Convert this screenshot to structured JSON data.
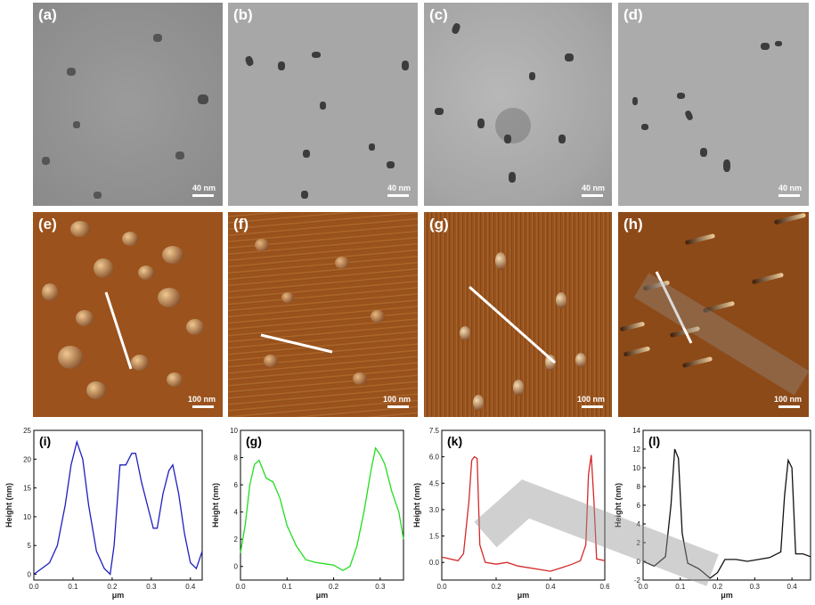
{
  "tem_panels": [
    {
      "label": "(a)",
      "scale": "40 nm"
    },
    {
      "label": "(b)",
      "scale": "40 nm"
    },
    {
      "label": "(c)",
      "scale": "40 nm"
    },
    {
      "label": "(d)",
      "scale": "40 nm"
    }
  ],
  "afm_panels": [
    {
      "label": "(e)",
      "scale": "100 nm"
    },
    {
      "label": "(f)",
      "scale": "100 nm"
    },
    {
      "label": "(g)",
      "scale": "100 nm"
    },
    {
      "label": "(h)",
      "scale": "100 nm"
    }
  ],
  "colors": {
    "blue": "#1f1fbf",
    "green": "#22dd22",
    "red": "#d62828",
    "black": "#111111",
    "afm_base": "#a0581e"
  },
  "chart_data": [
    {
      "type": "line",
      "label": "(i)",
      "xlabel": "μm",
      "ylabel": "Height (nm)",
      "xlim": [
        0.0,
        0.43
      ],
      "ylim": [
        -1,
        25
      ],
      "xticks": [
        "0.0",
        "0.1",
        "0.2",
        "0.3",
        "0.4"
      ],
      "xtick_values": [
        0,
        0.1,
        0.2,
        0.3,
        0.4
      ],
      "yticks": [
        "0",
        "5",
        "10",
        "15",
        "20",
        "25"
      ],
      "ytick_values": [
        0,
        5,
        10,
        15,
        20,
        25
      ],
      "color": "#1f1fbf",
      "x": [
        0.0,
        0.02,
        0.04,
        0.06,
        0.08,
        0.095,
        0.11,
        0.125,
        0.14,
        0.16,
        0.18,
        0.195,
        0.205,
        0.22,
        0.235,
        0.25,
        0.26,
        0.275,
        0.29,
        0.305,
        0.315,
        0.33,
        0.345,
        0.355,
        0.37,
        0.385,
        0.4,
        0.415,
        0.43
      ],
      "y": [
        0,
        1,
        2,
        5,
        12,
        19,
        23,
        20,
        12,
        4,
        1,
        0,
        5,
        19,
        19,
        21,
        21,
        16,
        12,
        8,
        8,
        14,
        18,
        19,
        14,
        7,
        2,
        1,
        4
      ]
    },
    {
      "type": "line",
      "label": "(g)",
      "xlabel": "μm",
      "ylabel": "Height (nm)",
      "xlim": [
        0.0,
        0.35
      ],
      "ylim": [
        -1,
        10
      ],
      "xticks": [
        "0.0",
        "0.1",
        "0.2",
        "0.3"
      ],
      "xtick_values": [
        0,
        0.1,
        0.2,
        0.3
      ],
      "yticks": [
        "0",
        "2",
        "4",
        "6",
        "8",
        "10"
      ],
      "ytick_values": [
        0,
        2,
        4,
        6,
        8,
        10
      ],
      "color": "#22dd22",
      "x": [
        0.0,
        0.01,
        0.02,
        0.03,
        0.04,
        0.055,
        0.07,
        0.085,
        0.1,
        0.12,
        0.14,
        0.16,
        0.18,
        0.2,
        0.22,
        0.235,
        0.25,
        0.265,
        0.28,
        0.29,
        0.3,
        0.31,
        0.325,
        0.34,
        0.35
      ],
      "y": [
        1,
        3,
        6,
        7.5,
        7.8,
        6.5,
        6.2,
        5,
        3,
        1.5,
        0.5,
        0.3,
        0.2,
        0.1,
        -0.3,
        0,
        1.5,
        4,
        7,
        8.7,
        8.2,
        7.5,
        5.5,
        4,
        2
      ]
    },
    {
      "type": "line",
      "label": "(k)",
      "xlabel": "μm",
      "ylabel": "Height (nm)",
      "xlim": [
        0.0,
        0.6
      ],
      "ylim": [
        -1,
        7.5
      ],
      "xticks": [
        "0.0",
        "0.2",
        "0.4",
        "0.6"
      ],
      "xtick_values": [
        0,
        0.2,
        0.4,
        0.6
      ],
      "yticks": [
        "0.0",
        "1.5",
        "3.0",
        "4.5",
        "6.0",
        "7.5"
      ],
      "ytick_values": [
        0,
        1.5,
        3,
        4.5,
        6,
        7.5
      ],
      "color": "#d62828",
      "x": [
        0.0,
        0.03,
        0.06,
        0.08,
        0.1,
        0.11,
        0.12,
        0.13,
        0.14,
        0.16,
        0.2,
        0.24,
        0.28,
        0.32,
        0.36,
        0.4,
        0.44,
        0.48,
        0.51,
        0.53,
        0.54,
        0.55,
        0.56,
        0.57,
        0.6
      ],
      "y": [
        0.3,
        0.2,
        0.1,
        0.5,
        3.5,
        5.8,
        6.0,
        5.9,
        1.0,
        0.0,
        -0.1,
        0.0,
        -0.2,
        -0.3,
        -0.4,
        -0.5,
        -0.3,
        -0.1,
        0.1,
        1.0,
        5.0,
        6.1,
        3.5,
        0.2,
        0.1
      ]
    },
    {
      "type": "line",
      "label": "(l)",
      "xlabel": "μm",
      "ylabel": "Height (nm)",
      "xlim": [
        0.0,
        0.45
      ],
      "ylim": [
        -2,
        14
      ],
      "xticks": [
        "0.0",
        "0.1",
        "0.2",
        "0.3",
        "0.4"
      ],
      "xtick_values": [
        0,
        0.1,
        0.2,
        0.3,
        0.4
      ],
      "yticks": [
        "-2",
        "0",
        "2",
        "4",
        "6",
        "8",
        "10",
        "12",
        "14"
      ],
      "ytick_values": [
        -2,
        0,
        2,
        4,
        6,
        8,
        10,
        12,
        14
      ],
      "color": "#111111",
      "x": [
        0.0,
        0.03,
        0.06,
        0.075,
        0.085,
        0.095,
        0.105,
        0.12,
        0.15,
        0.18,
        0.2,
        0.22,
        0.25,
        0.28,
        0.31,
        0.34,
        0.37,
        0.38,
        0.39,
        0.4,
        0.41,
        0.43,
        0.45
      ],
      "y": [
        0,
        -0.5,
        0.5,
        6,
        12,
        11,
        3,
        -0.2,
        -0.8,
        -1.8,
        -1.2,
        0.2,
        0.2,
        0.0,
        0.2,
        0.4,
        1.0,
        7,
        10.8,
        10,
        0.8,
        0.8,
        0.5
      ]
    }
  ]
}
